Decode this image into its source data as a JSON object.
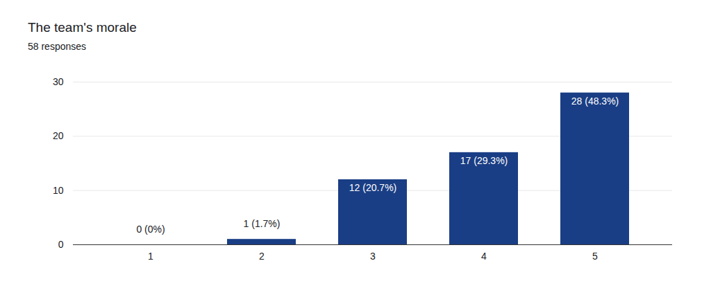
{
  "chart_data": {
    "type": "bar",
    "title": "The team's morale",
    "subtitle": "58 responses",
    "categories": [
      "1",
      "2",
      "3",
      "4",
      "5"
    ],
    "values": [
      0,
      1,
      12,
      17,
      28
    ],
    "value_labels": [
      "0 (0%)",
      "1 (1.7%)",
      "12 (20.7%)",
      "17 (29.3%)",
      "28 (48.3%)"
    ],
    "color": "#1a3e85",
    "ylim": [
      0,
      30
    ],
    "yticks": [
      0,
      10,
      20,
      30
    ],
    "grid": true,
    "data_labels": true
  }
}
